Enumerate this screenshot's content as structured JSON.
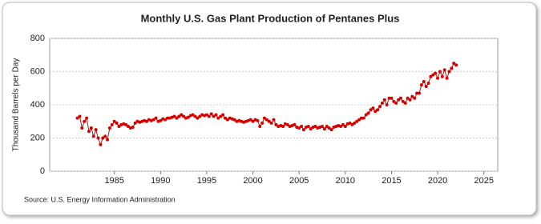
{
  "chart_data": {
    "type": "line",
    "title": "Monthly U.S. Gas Plant Production of Pentanes Plus",
    "y_label": "Thousand Barrels per Day",
    "source": "Source: U.S. Energy Information Administration",
    "x": [
      1981,
      1981.25,
      1981.5,
      1981.75,
      1982,
      1982.25,
      1982.5,
      1982.75,
      1983,
      1983.25,
      1983.5,
      1983.75,
      1984,
      1984.25,
      1984.5,
      1984.75,
      1985,
      1985.25,
      1985.5,
      1985.75,
      1986,
      1986.25,
      1986.5,
      1986.75,
      1987,
      1987.25,
      1987.5,
      1987.75,
      1988,
      1988.25,
      1988.5,
      1988.75,
      1989,
      1989.25,
      1989.5,
      1989.75,
      1990,
      1990.25,
      1990.5,
      1990.75,
      1991,
      1991.25,
      1991.5,
      1991.75,
      1992,
      1992.25,
      1992.5,
      1992.75,
      1993,
      1993.25,
      1993.5,
      1993.75,
      1994,
      1994.25,
      1994.5,
      1994.75,
      1995,
      1995.25,
      1995.5,
      1995.75,
      1996,
      1996.25,
      1996.5,
      1996.75,
      1997,
      1997.25,
      1997.5,
      1997.75,
      1998,
      1998.25,
      1998.5,
      1998.75,
      1999,
      1999.25,
      1999.5,
      1999.75,
      2000,
      2000.25,
      2000.5,
      2000.75,
      2001,
      2001.25,
      2001.5,
      2001.75,
      2002,
      2002.25,
      2002.5,
      2002.75,
      2003,
      2003.25,
      2003.5,
      2003.75,
      2004,
      2004.25,
      2004.5,
      2004.75,
      2005,
      2005.25,
      2005.5,
      2005.75,
      2006,
      2006.25,
      2006.5,
      2006.75,
      2007,
      2007.25,
      2007.5,
      2007.75,
      2008,
      2008.25,
      2008.5,
      2008.75,
      2009,
      2009.25,
      2009.5,
      2009.75,
      2010,
      2010.25,
      2010.5,
      2010.75,
      2011,
      2011.25,
      2011.5,
      2011.75,
      2012,
      2012.25,
      2012.5,
      2012.75,
      2013,
      2013.25,
      2013.5,
      2013.75,
      2014,
      2014.25,
      2014.5,
      2014.75,
      2015,
      2015.25,
      2015.5,
      2015.75,
      2016,
      2016.25,
      2016.5,
      2016.75,
      2017,
      2017.25,
      2017.5,
      2017.75,
      2018,
      2018.25,
      2018.5,
      2018.75,
      2019,
      2019.25,
      2019.5,
      2019.75,
      2020,
      2020.25,
      2020.5,
      2020.75,
      2021,
      2021.25,
      2021.5,
      2021.75,
      2022
    ],
    "series": [
      {
        "name": "Pentanes Plus",
        "color": "#9b1c1c",
        "marker_color": "#d40000",
        "values": [
          320,
          330,
          260,
          300,
          320,
          240,
          260,
          210,
          250,
          200,
          160,
          200,
          210,
          190,
          260,
          280,
          300,
          290,
          270,
          280,
          285,
          280,
          270,
          260,
          265,
          290,
          300,
          295,
          300,
          305,
          300,
          310,
          305,
          310,
          320,
          300,
          305,
          315,
          310,
          320,
          320,
          325,
          330,
          320,
          330,
          340,
          330,
          320,
          325,
          335,
          340,
          330,
          320,
          330,
          340,
          335,
          340,
          330,
          345,
          330,
          340,
          320,
          330,
          340,
          320,
          310,
          320,
          315,
          310,
          300,
          305,
          300,
          295,
          300,
          305,
          310,
          300,
          310,
          305,
          270,
          290,
          320,
          310,
          300,
          290,
          310,
          280,
          270,
          275,
          270,
          285,
          280,
          270,
          275,
          280,
          265,
          260,
          270,
          250,
          265,
          270,
          255,
          265,
          270,
          260,
          265,
          270,
          255,
          270,
          260,
          250,
          265,
          270,
          275,
          270,
          280,
          270,
          285,
          290,
          280,
          290,
          300,
          310,
          320,
          320,
          340,
          350,
          370,
          380,
          360,
          370,
          390,
          410,
          430,
          400,
          440,
          440,
          420,
          410,
          430,
          440,
          420,
          410,
          440,
          430,
          450,
          440,
          470,
          470,
          520,
          540,
          510,
          530,
          570,
          580,
          590,
          560,
          600,
          570,
          610,
          560,
          600,
          620,
          650,
          640
        ]
      }
    ],
    "xlim": [
      1978,
      2026.5
    ],
    "ylim": [
      0,
      800
    ],
    "xticks": [
      1985,
      1990,
      1995,
      2000,
      2005,
      2010,
      2015,
      2020,
      2025
    ],
    "yticks": [
      0,
      200,
      400,
      600,
      800
    ],
    "grid": true
  }
}
